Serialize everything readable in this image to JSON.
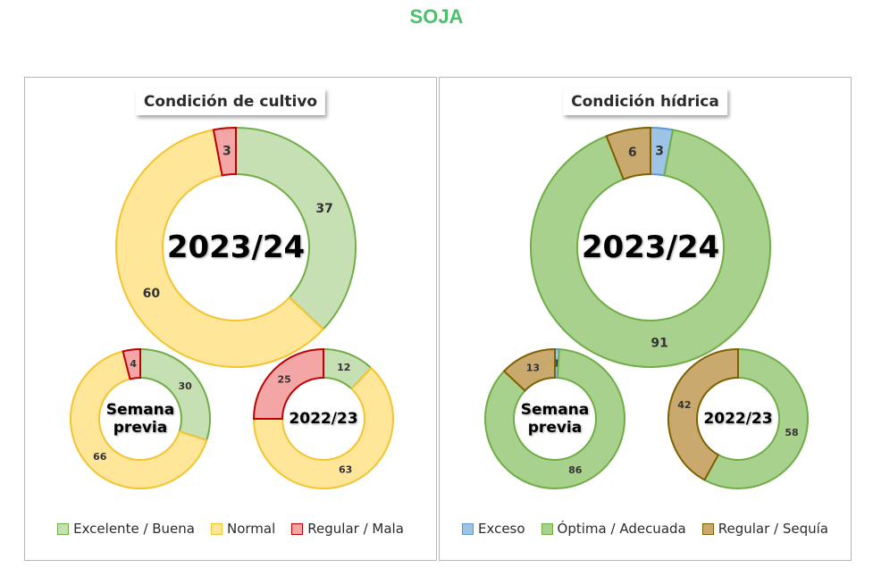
{
  "page_title": "SOJA",
  "colors": {
    "buena": "#c6e0b4",
    "buena_border": "#70ad47",
    "normal": "#ffe699",
    "normal_border": "#f4c430",
    "mala": "#f4a6a6",
    "mala_border": "#c00000",
    "exceso": "#9dc3e6",
    "exceso_border": "#5b9bd5",
    "optima": "#a9d18e",
    "optima_border": "#70ad47",
    "sequia": "#c9a96e",
    "sequia_border": "#7f6000"
  },
  "chart_data": [
    {
      "type": "pie",
      "title": "Condición de cultivo",
      "legend": [
        "Excelente / Buena",
        "Normal",
        "Regular / Mala"
      ],
      "legend_position": "bottom",
      "donuts": [
        {
          "label": "2023/24",
          "values": [
            37,
            60,
            3
          ]
        },
        {
          "label": "Semana previa",
          "values": [
            30,
            66,
            4
          ]
        },
        {
          "label": "2022/23",
          "values": [
            12,
            63,
            25
          ]
        }
      ]
    },
    {
      "type": "pie",
      "title": "Condición hídrica",
      "legend": [
        "Exceso",
        "Óptima / Adecuada",
        "Regular / Sequía"
      ],
      "legend_position": "bottom",
      "donuts": [
        {
          "label": "2023/24",
          "values": [
            3,
            91,
            6
          ]
        },
        {
          "label": "Semana previa",
          "values": [
            1,
            86,
            13
          ]
        },
        {
          "label": "2022/23",
          "values": [
            0,
            58,
            42
          ]
        }
      ]
    }
  ]
}
